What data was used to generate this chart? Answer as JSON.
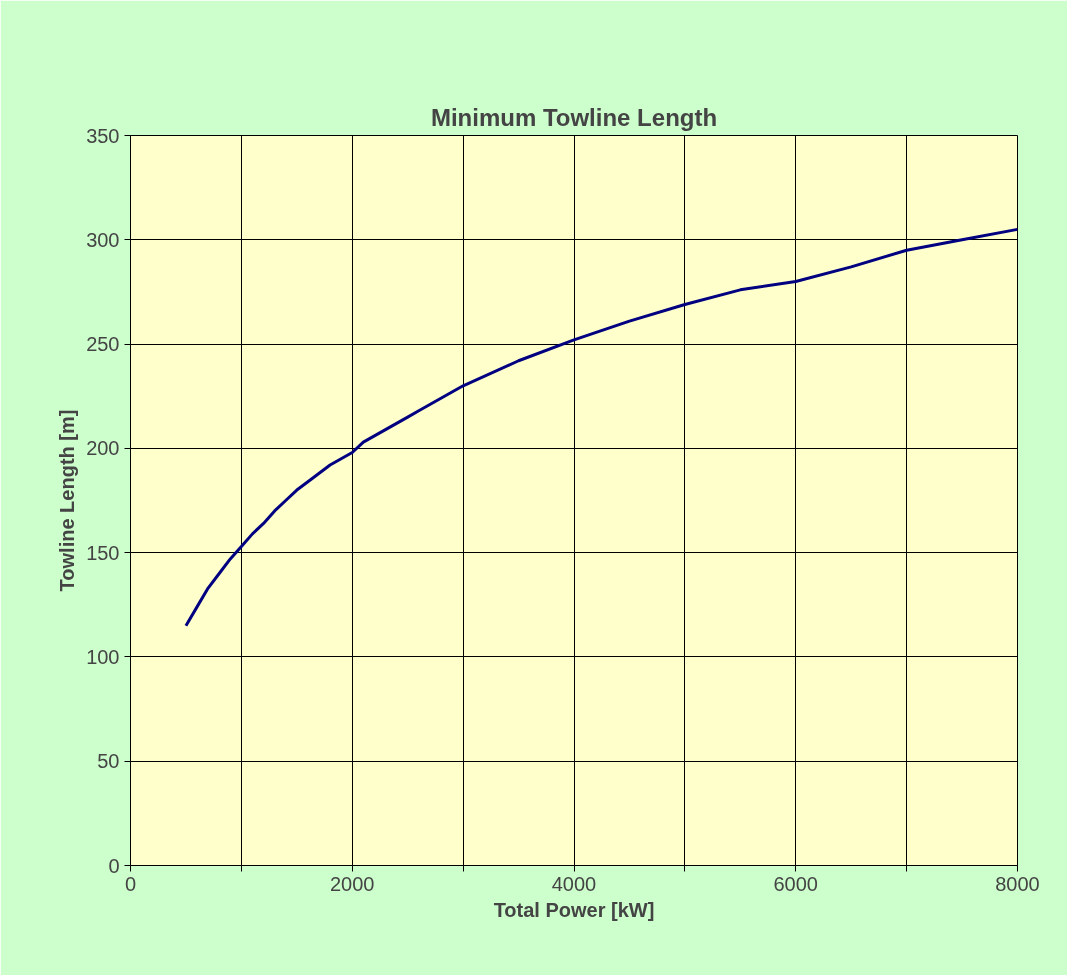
{
  "chart_data": {
    "type": "line",
    "title": "Minimum Towline Length",
    "xlabel": "Total Power [kW]",
    "ylabel": "Towline Length [m]",
    "x": [
      500,
      600,
      700,
      800,
      900,
      1000,
      1100,
      1200,
      1300,
      1400,
      1500,
      1600,
      1800,
      2000,
      2100,
      2400,
      2500,
      2600,
      2900,
      3000,
      3500,
      4000,
      4500,
      5000,
      5500,
      6000,
      6500,
      7000,
      7500,
      8000
    ],
    "series": [
      {
        "color": "#000080",
        "values": [
          115,
          124,
          133,
          140,
          147,
          153,
          159,
          164,
          170,
          175,
          180,
          184,
          192,
          198,
          203,
          212,
          215,
          218,
          227,
          230,
          242,
          252,
          261,
          269,
          276,
          280,
          287,
          295,
          300,
          305
        ]
      }
    ],
    "xlim": [
      0,
      8000
    ],
    "xticks": [
      0,
      {
        "value": 1000,
        "label": null
      },
      2000,
      {
        "value": 3000,
        "label": null
      },
      4000,
      {
        "value": 5000,
        "label": null
      },
      6000,
      {
        "value": 7000,
        "label": null
      },
      8000
    ],
    "ylim": [
      0,
      350
    ],
    "yticks": [
      0,
      50,
      100,
      150,
      200,
      250,
      300,
      350
    ],
    "grid": true,
    "marker": "none",
    "line_style": "solid"
  }
}
